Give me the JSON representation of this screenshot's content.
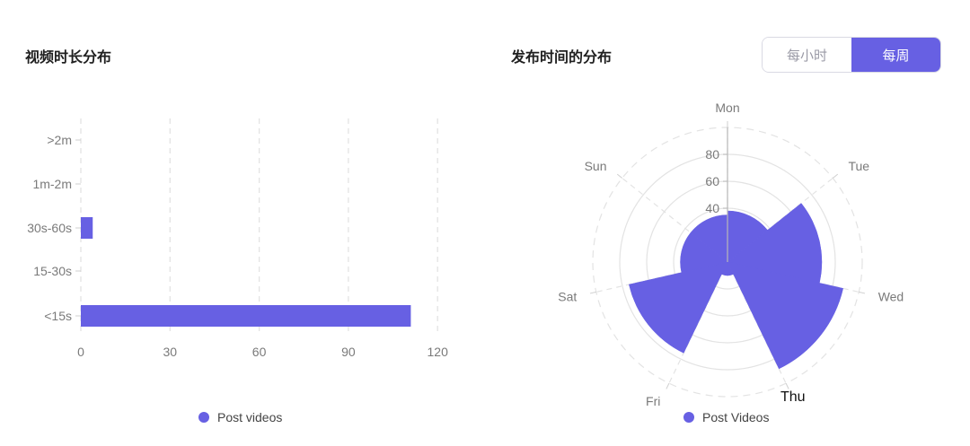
{
  "bar_panel": {
    "title": "视频时长分布"
  },
  "polar_panel": {
    "title": "发布时间的分布"
  },
  "toggle": {
    "hourly_label": "每小时",
    "weekly_label": "每周",
    "selected": "weekly"
  },
  "colors": {
    "accent": "#6760e3",
    "grid": "#e3e3e3",
    "axis": "#cfcfcf"
  },
  "chart_data": [
    {
      "type": "bar",
      "orientation": "horizontal",
      "title": "",
      "categories": [
        "<15s",
        "15-30s",
        "30s-60s",
        "1m-2m",
        ">2m"
      ],
      "series": [
        {
          "name": "Post videos",
          "values": [
            111,
            0,
            4,
            0,
            0
          ]
        }
      ],
      "xlim": [
        0,
        120
      ],
      "xticks": [
        "0",
        "30",
        "60",
        "90",
        "120"
      ],
      "grid": true,
      "legend_position": "bottom",
      "legend_icon": "circle-icon"
    },
    {
      "type": "polar-bar",
      "title": "",
      "categories": [
        "Mon",
        "Tue",
        "Wed",
        "Thu",
        "Fri",
        "Sat",
        "Sun"
      ],
      "series": [
        {
          "name": "Post videos",
          "values": [
            38,
            70,
            88,
            10,
            75,
            35,
            35
          ]
        }
      ],
      "rlim": [
        0,
        100
      ],
      "rticks": [
        "40",
        "60",
        "80"
      ],
      "extra_label": "Thu",
      "legend_label": "Post Videos",
      "legend_position": "bottom",
      "legend_icon": "circle-icon"
    }
  ]
}
